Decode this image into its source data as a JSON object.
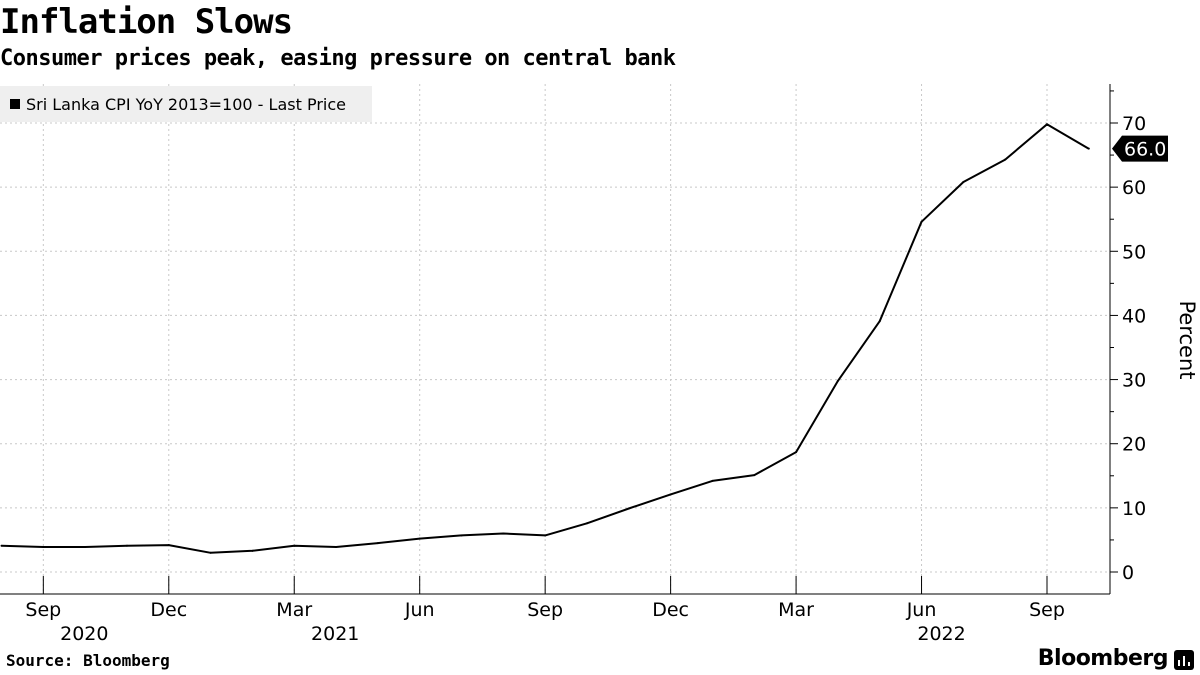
{
  "header": {
    "title": "Inflation Slows",
    "subtitle": "Consumer prices peak, easing pressure on central bank"
  },
  "legend": {
    "label": "Sri Lanka CPI YoY 2013=100 - Last Price",
    "color": "#000000"
  },
  "footer": {
    "source": "Source: Bloomberg",
    "brand": "Bloomberg",
    "brand_icon": "bloomberg-bars-icon"
  },
  "chart_data": {
    "type": "line",
    "title": "Inflation Slows",
    "subtitle": "Consumer prices peak, easing pressure on central bank",
    "xlabel": "",
    "ylabel": "Percent",
    "ylim": [
      -3,
      76
    ],
    "yticks": [
      0,
      10,
      20,
      30,
      40,
      50,
      60,
      70
    ],
    "grid": true,
    "legend_position": "top-left",
    "last_value_label": "66.0",
    "x_month_ticks": [
      "Sep",
      "Dec",
      "Mar",
      "Jun",
      "Sep",
      "Dec",
      "Mar",
      "Jun",
      "Sep"
    ],
    "x_year_labels": [
      "2020",
      "2021",
      "2022"
    ],
    "series": [
      {
        "name": "Sri Lanka CPI YoY 2013=100 - Last Price",
        "color": "#000000",
        "x": [
          "2020-08",
          "2020-09",
          "2020-10",
          "2020-11",
          "2020-12",
          "2021-01",
          "2021-02",
          "2021-03",
          "2021-04",
          "2021-05",
          "2021-06",
          "2021-07",
          "2021-08",
          "2021-09",
          "2021-10",
          "2021-11",
          "2021-12",
          "2022-01",
          "2022-02",
          "2022-03",
          "2022-04",
          "2022-05",
          "2022-06",
          "2022-07",
          "2022-08",
          "2022-09",
          "2022-10"
        ],
        "values": [
          4.1,
          3.9,
          3.9,
          4.1,
          4.2,
          3.0,
          3.3,
          4.1,
          3.9,
          4.5,
          5.2,
          5.7,
          6.0,
          5.7,
          7.6,
          9.9,
          12.1,
          14.2,
          15.1,
          18.7,
          29.8,
          39.1,
          54.6,
          60.8,
          64.3,
          69.8,
          66.0
        ]
      }
    ]
  }
}
